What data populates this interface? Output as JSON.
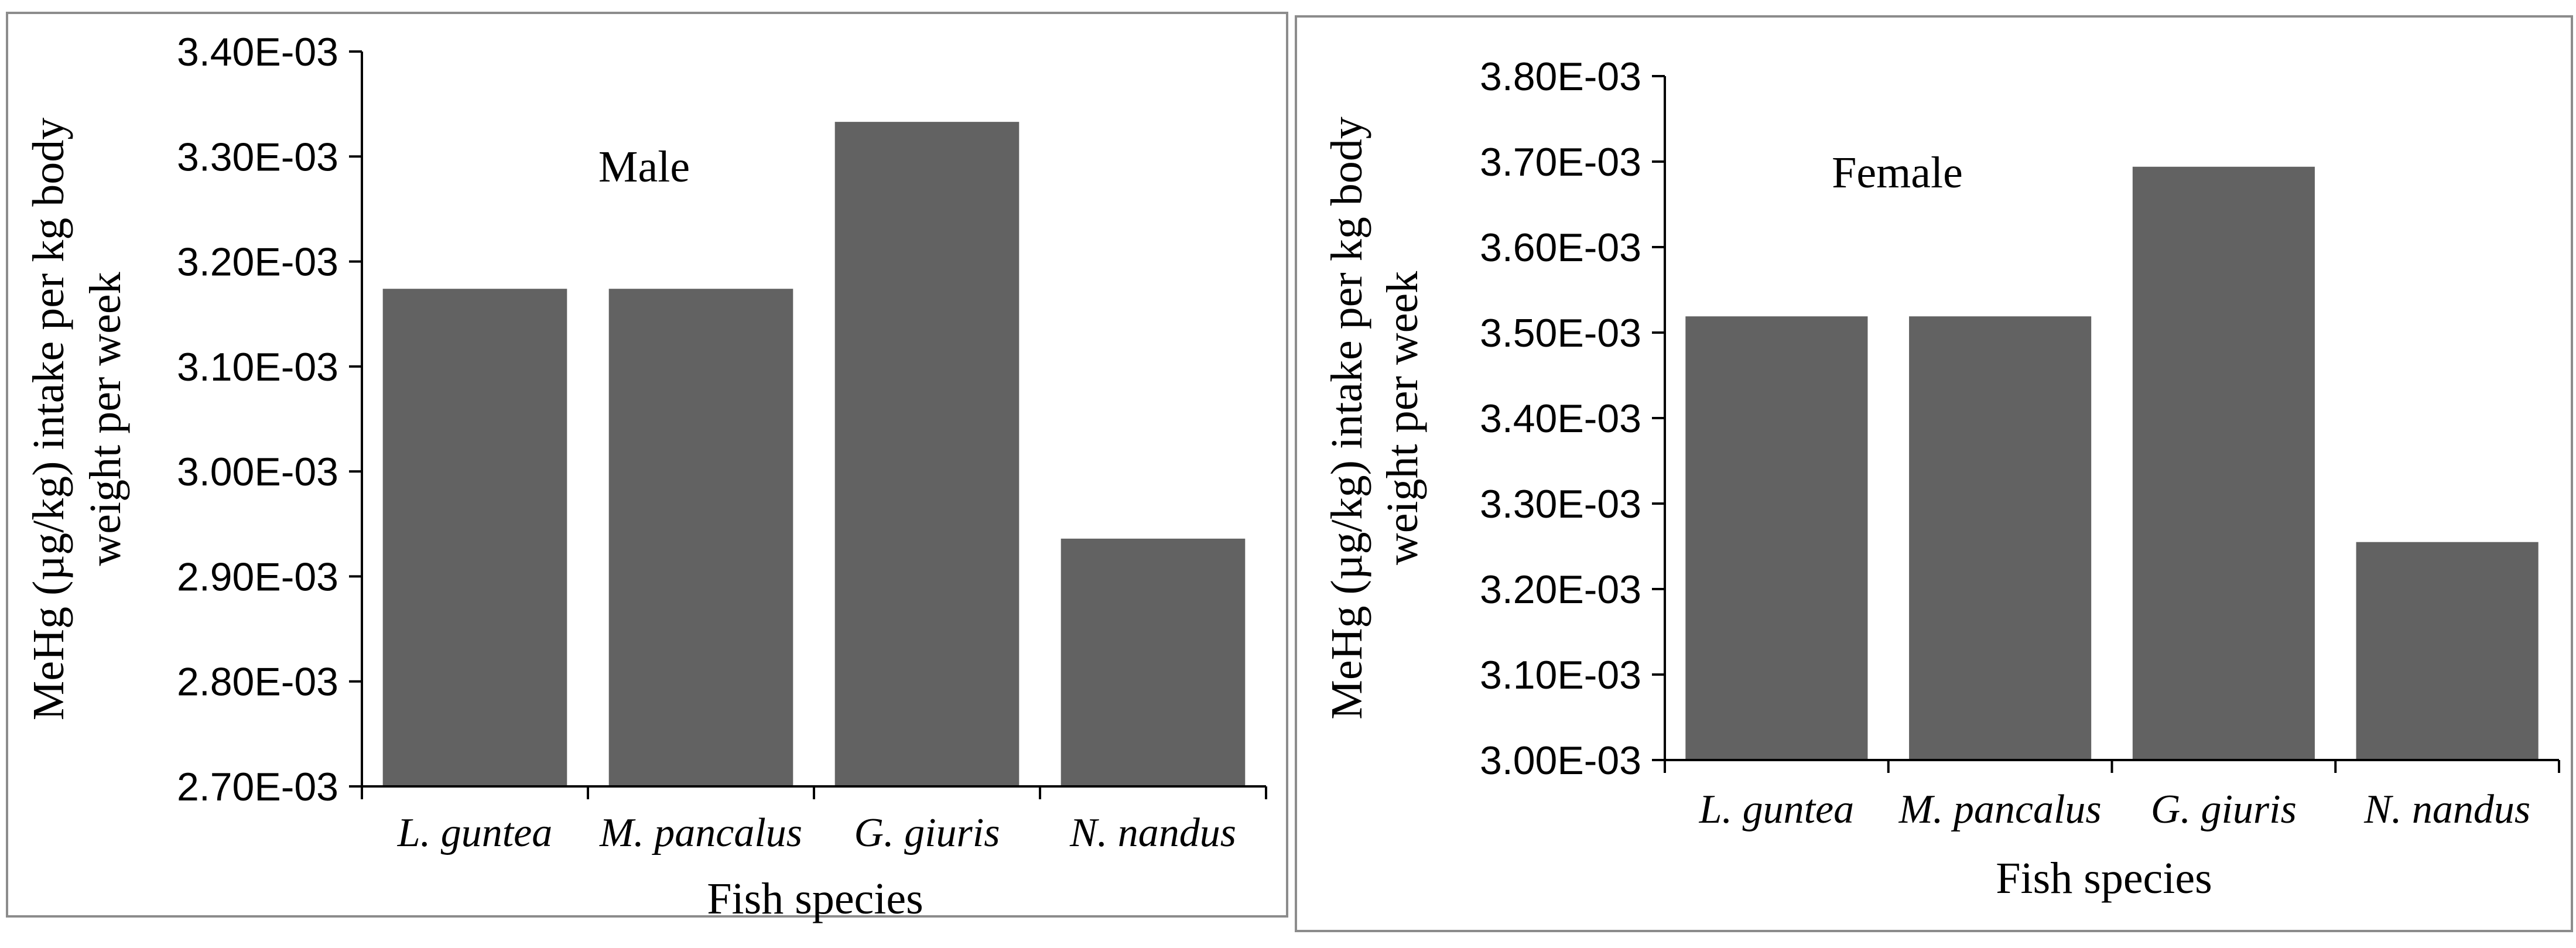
{
  "chart_data": [
    {
      "type": "bar",
      "title": "Male",
      "categories": [
        "L. guntea",
        "M. pancalus",
        "G. giuris",
        "N. nandus"
      ],
      "values": [
        0.003174,
        0.003174,
        0.003333,
        0.002936
      ],
      "xlabel": "Fish species",
      "ylabel_lines": [
        "MeHg (µg/kg) intake per kg body",
        "weight per week"
      ],
      "ylim": [
        0.0027,
        0.0034
      ],
      "yticks": [
        0.0027,
        0.0028,
        0.0029,
        0.003,
        0.0031,
        0.0032,
        0.0033,
        0.0034
      ],
      "ytick_labels": [
        "2.70E-03",
        "2.80E-03",
        "2.90E-03",
        "3.00E-03",
        "3.10E-03",
        "3.20E-03",
        "3.30E-03",
        "3.40E-03"
      ],
      "bar_color": "#626262",
      "grid": false
    },
    {
      "type": "bar",
      "title": "Female",
      "categories": [
        "L. guntea",
        "M. pancalus",
        "G. giuris",
        "N. nandus"
      ],
      "values": [
        0.003519,
        0.003519,
        0.003694,
        0.003255
      ],
      "xlabel": "Fish species",
      "ylabel_lines": [
        "MeHg (µg/kg) intake per kg body",
        "weight per week"
      ],
      "ylim": [
        0.003,
        0.0038
      ],
      "yticks": [
        0.003,
        0.0031,
        0.0032,
        0.0033,
        0.0034,
        0.0035,
        0.0036,
        0.0037,
        0.0038
      ],
      "ytick_labels": [
        "3.00E-03",
        "3.10E-03",
        "3.20E-03",
        "3.30E-03",
        "3.40E-03",
        "3.50E-03",
        "3.60E-03",
        "3.70E-03",
        "3.80E-03"
      ],
      "bar_color": "#626262",
      "grid": false
    }
  ]
}
